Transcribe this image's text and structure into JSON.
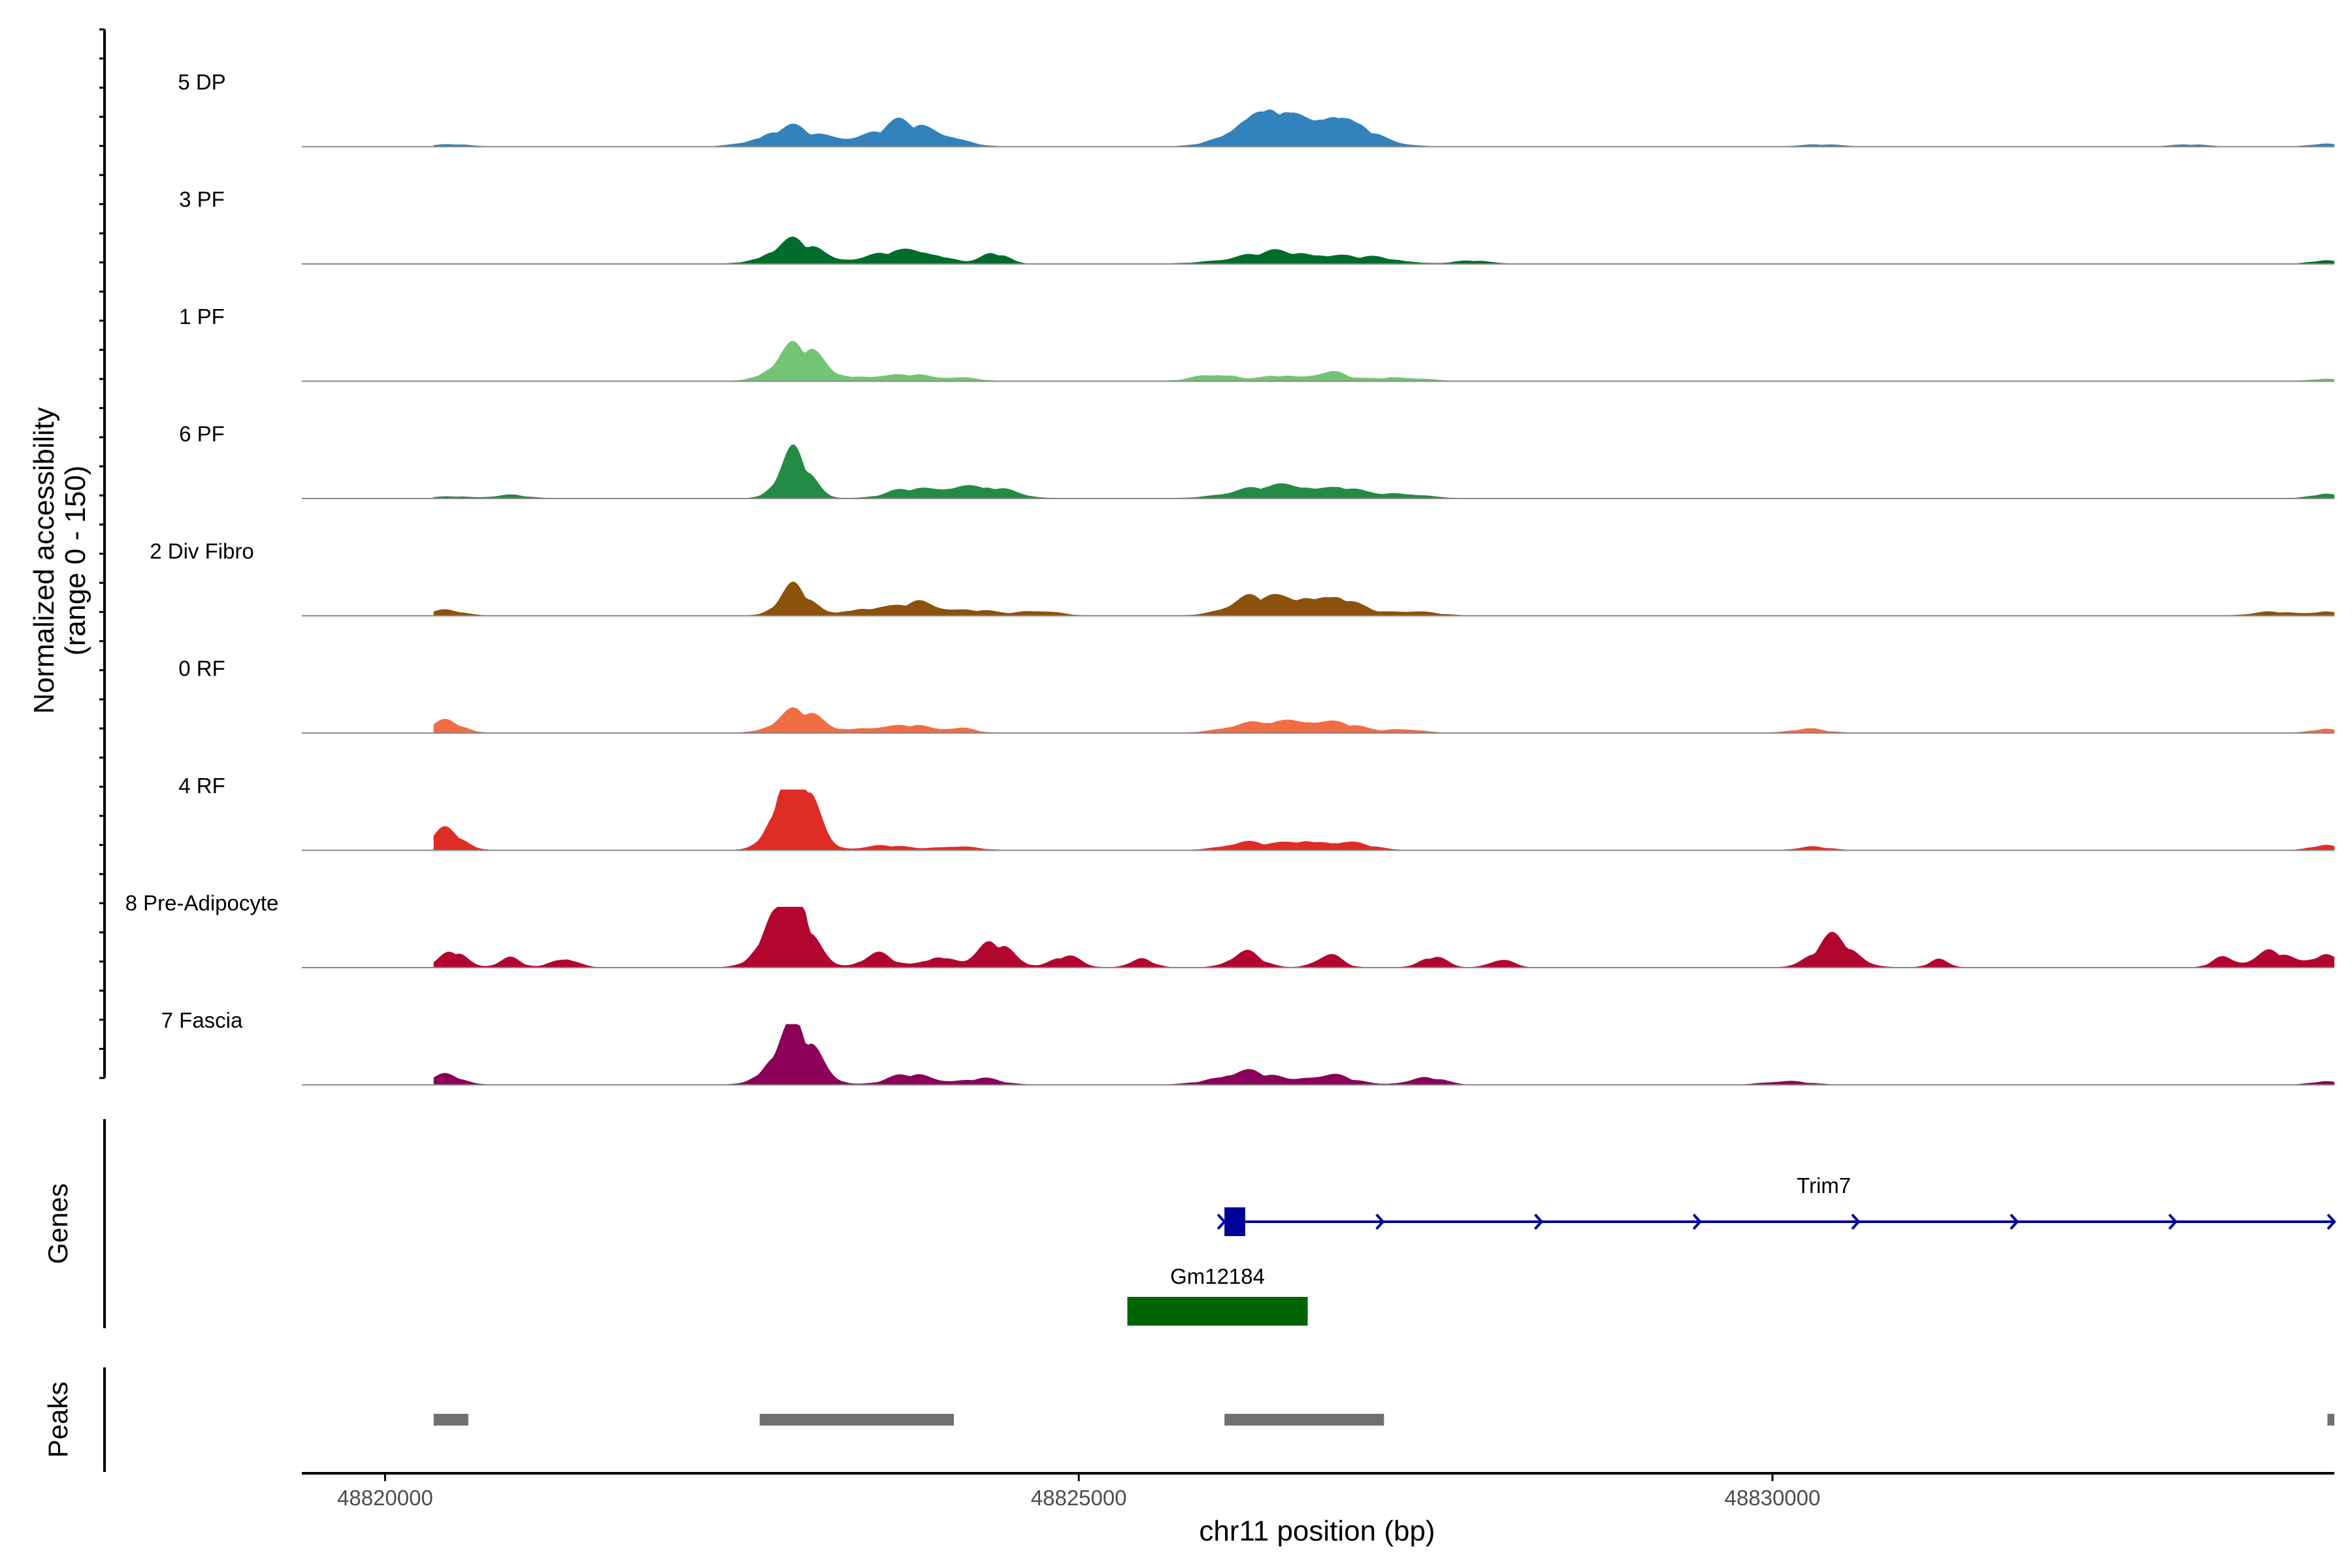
{
  "chart_data": {
    "type": "area",
    "chromosome": "chr11",
    "xlabel": "chr11 position (bp)",
    "xlim": [
      48819400,
      48834050
    ],
    "x_ticks": [
      48820000,
      48825000,
      48830000
    ],
    "x_tick_labels": [
      "48820000",
      "48825000",
      "48830000"
    ],
    "ylabel_line1": "Normalized accessibility",
    "ylabel_line2": "(range 0 - 150)",
    "ylim": [
      0,
      150
    ],
    "panel_titles": {
      "genes": "Genes",
      "peaks": "Peaks"
    },
    "data_start": 48820350,
    "data_end": 48834050,
    "tracks": [
      {
        "name": "5 DP",
        "color": "#3182bd",
        "peaks": [
          [
            48820500,
            120,
            7
          ],
          [
            48822900,
            190,
            58
          ],
          [
            48823300,
            160,
            14
          ],
          [
            48823750,
            220,
            72
          ],
          [
            48824050,
            140,
            12
          ],
          [
            48826200,
            180,
            50
          ],
          [
            48826450,
            200,
            68
          ],
          [
            48826750,
            190,
            58
          ],
          [
            48827000,
            200,
            42
          ],
          [
            48830350,
            140,
            6
          ],
          [
            48833000,
            120,
            6
          ],
          [
            48834000,
            100,
            10
          ]
        ]
      },
      {
        "name": "3 PF",
        "color": "#006d2c",
        "peaks": [
          [
            48822950,
            170,
            70
          ],
          [
            48823650,
            200,
            34
          ],
          [
            48823950,
            150,
            22
          ],
          [
            48824400,
            90,
            32
          ],
          [
            48826300,
            250,
            22
          ],
          [
            48826700,
            300,
            26
          ],
          [
            48827200,
            160,
            12
          ],
          [
            48827850,
            120,
            10
          ],
          [
            48834000,
            100,
            12
          ]
        ]
      },
      {
        "name": "1 PF",
        "color": "#74c476",
        "peaks": [
          [
            48822980,
            160,
            110
          ],
          [
            48823450,
            130,
            12
          ],
          [
            48823800,
            150,
            20
          ],
          [
            48824150,
            120,
            10
          ],
          [
            48826000,
            150,
            22
          ],
          [
            48826450,
            110,
            16
          ],
          [
            48826800,
            120,
            30
          ],
          [
            48827300,
            180,
            12
          ],
          [
            48834000,
            100,
            8
          ]
        ]
      },
      {
        "name": "6 PF",
        "color": "#238b45",
        "peaks": [
          [
            48820500,
            120,
            6
          ],
          [
            48820900,
            120,
            10
          ],
          [
            48822950,
            110,
            140
          ],
          [
            48823800,
            170,
            28
          ],
          [
            48824150,
            150,
            32
          ],
          [
            48824450,
            140,
            24
          ],
          [
            48826250,
            200,
            28
          ],
          [
            48826600,
            170,
            32
          ],
          [
            48826900,
            130,
            26
          ],
          [
            48827300,
            180,
            16
          ],
          [
            48834000,
            100,
            16
          ]
        ]
      },
      {
        "name": "2 Div Fibro",
        "color": "#8c510a",
        "peaks": [
          [
            48820450,
            120,
            16
          ],
          [
            48822950,
            110,
            88
          ],
          [
            48823450,
            150,
            22
          ],
          [
            48823850,
            150,
            42
          ],
          [
            48824250,
            140,
            16
          ],
          [
            48824700,
            140,
            16
          ],
          [
            48826250,
            170,
            58
          ],
          [
            48826650,
            170,
            48
          ],
          [
            48826900,
            160,
            36
          ],
          [
            48827400,
            160,
            14
          ],
          [
            48833600,
            140,
            12
          ],
          [
            48834000,
            100,
            14
          ]
        ]
      },
      {
        "name": "0 RF",
        "color": "#f16d43",
        "peaks": [
          [
            48820450,
            110,
            36
          ],
          [
            48822980,
            150,
            70
          ],
          [
            48823450,
            120,
            14
          ],
          [
            48823800,
            150,
            24
          ],
          [
            48824150,
            100,
            14
          ],
          [
            48826200,
            170,
            26
          ],
          [
            48826550,
            170,
            28
          ],
          [
            48826850,
            170,
            30
          ],
          [
            48827350,
            120,
            12
          ],
          [
            48830250,
            130,
            12
          ],
          [
            48834000,
            100,
            14
          ]
        ]
      },
      {
        "name": "4 RF",
        "color": "#de2d26",
        "peaks": [
          [
            48820450,
            110,
            62
          ],
          [
            48822950,
            130,
            280
          ],
          [
            48823600,
            150,
            14
          ],
          [
            48824100,
            150,
            12
          ],
          [
            48826200,
            160,
            24
          ],
          [
            48826650,
            160,
            30
          ],
          [
            48827000,
            140,
            18
          ],
          [
            48830300,
            110,
            10
          ],
          [
            48834000,
            100,
            18
          ]
        ]
      },
      {
        "name": "8 Pre-Adipocyte",
        "color": "#b2062e",
        "peaks": [
          [
            48820500,
            90,
            52
          ],
          [
            48820900,
            80,
            28
          ],
          [
            48821300,
            90,
            30
          ],
          [
            48822900,
            140,
            270
          ],
          [
            48823550,
            110,
            42
          ],
          [
            48824000,
            110,
            36
          ],
          [
            48824400,
            120,
            76
          ],
          [
            48824900,
            100,
            36
          ],
          [
            48825450,
            80,
            30
          ],
          [
            48826200,
            110,
            48
          ],
          [
            48826800,
            90,
            42
          ],
          [
            48827550,
            90,
            34
          ],
          [
            48828050,
            80,
            28
          ],
          [
            48830450,
            140,
            90
          ],
          [
            48831200,
            70,
            24
          ],
          [
            48833250,
            80,
            32
          ],
          [
            48833600,
            120,
            52
          ],
          [
            48834000,
            100,
            46
          ]
        ]
      },
      {
        "name": "7 Fascia",
        "color": "#8b0058",
        "peaks": [
          [
            48820450,
            110,
            30
          ],
          [
            48822950,
            150,
            180
          ],
          [
            48823800,
            160,
            32
          ],
          [
            48824300,
            140,
            18
          ],
          [
            48826200,
            200,
            42
          ],
          [
            48826800,
            160,
            32
          ],
          [
            48827500,
            120,
            24
          ],
          [
            48830100,
            140,
            12
          ],
          [
            48834000,
            100,
            12
          ]
        ]
      }
    ],
    "genes": [
      {
        "name": "Trim7",
        "start": 48826050,
        "end": 48834050,
        "strand": "+",
        "color": "#000099",
        "exon": [
          48826050,
          48826200
        ]
      },
      {
        "name": "Gm12184",
        "start": 48825350,
        "end": 48826650,
        "color": "#006400"
      }
    ],
    "peak_regions": [
      [
        48820350,
        48820600
      ],
      [
        48822700,
        48824100
      ],
      [
        48826050,
        48827200
      ],
      [
        48834000,
        48834050
      ]
    ]
  }
}
